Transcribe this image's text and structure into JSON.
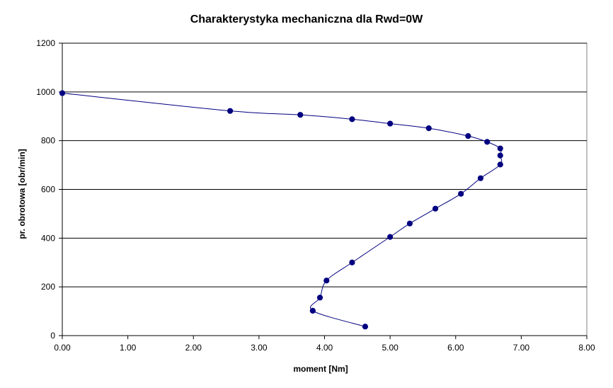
{
  "chart_data": {
    "type": "scatter",
    "title": "Charakterystyka mechaniczna dla Rwd=0W",
    "xlabel": "moment [Nm]",
    "ylabel": "pr. obrotowa [obr/min]",
    "xlim": [
      0,
      8
    ],
    "ylim": [
      0,
      1200
    ],
    "x_ticks": [
      "0.00",
      "1.00",
      "2.00",
      "3.00",
      "4.00",
      "5.00",
      "6.00",
      "7.00",
      "8.00"
    ],
    "y_ticks": [
      "0",
      "200",
      "400",
      "600",
      "800",
      "1000",
      "1200"
    ],
    "grid": "horizontal",
    "legend": "none",
    "line_style": "smoothed line with markers",
    "colors": {
      "series": "#000080",
      "grid": "#000000",
      "plot_background": "#ffffff"
    },
    "series": [
      {
        "points": [
          {
            "x": 0.0,
            "y": 995
          },
          {
            "x": 2.56,
            "y": 922
          },
          {
            "x": 3.63,
            "y": 906
          },
          {
            "x": 4.42,
            "y": 888
          },
          {
            "x": 5.0,
            "y": 870
          },
          {
            "x": 5.59,
            "y": 851
          },
          {
            "x": 6.19,
            "y": 819
          },
          {
            "x": 6.48,
            "y": 795
          },
          {
            "x": 6.68,
            "y": 768
          },
          {
            "x": 6.68,
            "y": 739
          },
          {
            "x": 6.68,
            "y": 702
          },
          {
            "x": 6.38,
            "y": 646
          },
          {
            "x": 6.08,
            "y": 582
          },
          {
            "x": 5.69,
            "y": 521
          },
          {
            "x": 5.3,
            "y": 460
          },
          {
            "x": 5.0,
            "y": 405
          },
          {
            "x": 4.42,
            "y": 300
          },
          {
            "x": 4.03,
            "y": 226
          },
          {
            "x": 3.93,
            "y": 156
          },
          {
            "x": 3.82,
            "y": 102
          },
          {
            "x": 4.62,
            "y": 37
          }
        ]
      }
    ]
  }
}
